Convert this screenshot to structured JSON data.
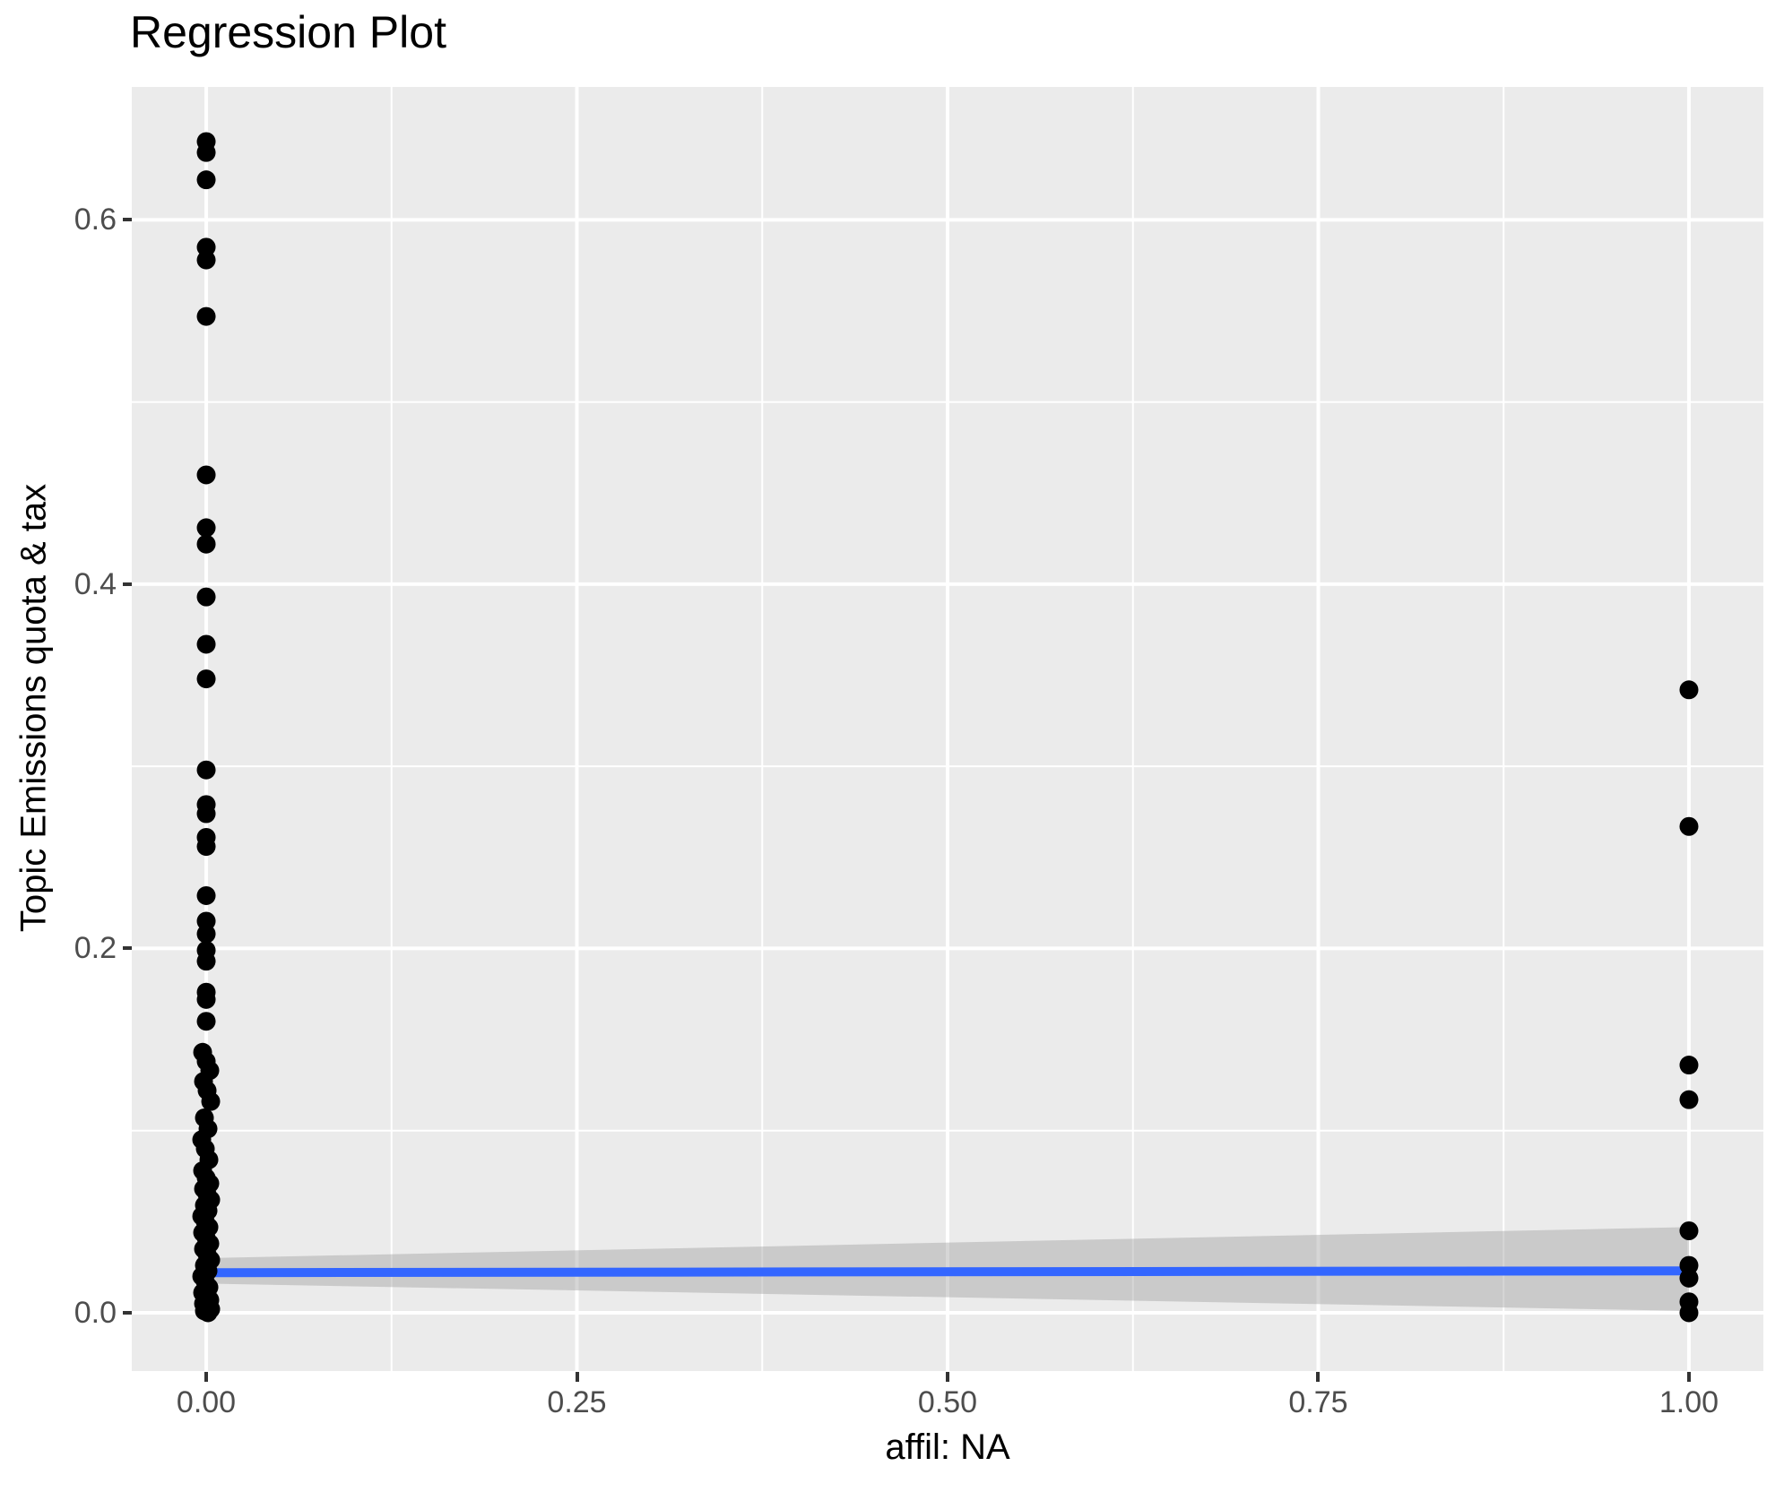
{
  "chart_data": {
    "type": "scatter",
    "title": "Regression Plot",
    "xlabel": "affil: NA",
    "ylabel": "Topic Emissions quota & tax",
    "legend": "none",
    "grid": "major-and-minor, white on gray panel",
    "xlim": [
      -0.0502,
      1.0502
    ],
    "ylim": [
      -0.032,
      0.673
    ],
    "x_ticks": [
      {
        "v": 0.0,
        "label": "0.00"
      },
      {
        "v": 0.25,
        "label": "0.25"
      },
      {
        "v": 0.5,
        "label": "0.50"
      },
      {
        "v": 0.75,
        "label": "0.75"
      },
      {
        "v": 1.0,
        "label": "1.00"
      }
    ],
    "y_ticks": [
      {
        "v": 0.0,
        "label": "0.0"
      },
      {
        "v": 0.2,
        "label": "0.2"
      },
      {
        "v": 0.4,
        "label": "0.4"
      },
      {
        "v": 0.6,
        "label": "0.6"
      }
    ],
    "x_minor": [
      0.125,
      0.375,
      0.625,
      0.875
    ],
    "y_minor": [
      0.1,
      0.3,
      0.5
    ],
    "series": [
      {
        "name": "observations",
        "color": "#000000",
        "points": [
          [
            0,
            0.643
          ],
          [
            0,
            0.637
          ],
          [
            0,
            0.622
          ],
          [
            0,
            0.585
          ],
          [
            0,
            0.578
          ],
          [
            0,
            0.547
          ],
          [
            0,
            0.46
          ],
          [
            0,
            0.431
          ],
          [
            0,
            0.422
          ],
          [
            0,
            0.393
          ],
          [
            0,
            0.367
          ],
          [
            0,
            0.348
          ],
          [
            0,
            0.298
          ],
          [
            0,
            0.279
          ],
          [
            0,
            0.274
          ],
          [
            0,
            0.261
          ],
          [
            0,
            0.256
          ],
          [
            0,
            0.229
          ],
          [
            0,
            0.215
          ],
          [
            0,
            0.208
          ],
          [
            0,
            0.199
          ],
          [
            0,
            0.193
          ],
          [
            0,
            0.176
          ],
          [
            0,
            0.172
          ],
          [
            0,
            0.16
          ],
          [
            0,
            0.143
          ],
          [
            0,
            0.138
          ],
          [
            0,
            0.133
          ],
          [
            0,
            0.127
          ],
          [
            0,
            0.122
          ],
          [
            0,
            0.116
          ],
          [
            0,
            0.107
          ],
          [
            0,
            0.101
          ],
          [
            0,
            0.095
          ],
          [
            0,
            0.09
          ],
          [
            0,
            0.084
          ],
          [
            0,
            0.078
          ],
          [
            0,
            0.074
          ],
          [
            0,
            0.071
          ],
          [
            0,
            0.068
          ],
          [
            0,
            0.065
          ],
          [
            0,
            0.062
          ],
          [
            0,
            0.059
          ],
          [
            0,
            0.056
          ],
          [
            0,
            0.053
          ],
          [
            0,
            0.05
          ],
          [
            0,
            0.047
          ],
          [
            0,
            0.044
          ],
          [
            0,
            0.041
          ],
          [
            0,
            0.038
          ],
          [
            0,
            0.035
          ],
          [
            0,
            0.032
          ],
          [
            0,
            0.029
          ],
          [
            0,
            0.026
          ],
          [
            0,
            0.023
          ],
          [
            0,
            0.02
          ],
          [
            0,
            0.017
          ],
          [
            0,
            0.014
          ],
          [
            0,
            0.011
          ],
          [
            0,
            0.009
          ],
          [
            0,
            0.007
          ],
          [
            0,
            0.005
          ],
          [
            0,
            0.003
          ],
          [
            0,
            0.002
          ],
          [
            0,
            0.001
          ],
          [
            0,
            0.0
          ],
          [
            1,
            0.342
          ],
          [
            1,
            0.267
          ],
          [
            1,
            0.136
          ],
          [
            1,
            0.117
          ],
          [
            1,
            0.045
          ],
          [
            1,
            0.026
          ],
          [
            1,
            0.019
          ],
          [
            1,
            0.006
          ],
          [
            1,
            0.0
          ]
        ]
      }
    ],
    "smooth": {
      "name": "linear-fit",
      "color": "#3366FF",
      "x": [
        0,
        1
      ],
      "y": [
        0.022,
        0.023
      ]
    },
    "ci": {
      "name": "confidence-band",
      "fill": "rgba(153,153,153,0.4)",
      "x": [
        0,
        1
      ],
      "upper": [
        0.03,
        0.047
      ],
      "lower": [
        0.016,
        0.001
      ]
    },
    "colors": {
      "panel": "#EBEBEB",
      "grid": "#FFFFFF",
      "tick_text": "#4D4D4D",
      "tick_mark": "#333333",
      "title_text": "#000000",
      "point": "#000000"
    }
  }
}
